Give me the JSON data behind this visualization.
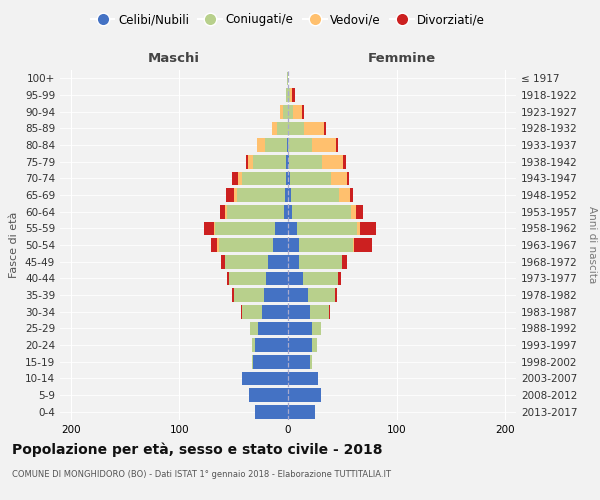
{
  "age_groups": [
    "0-4",
    "5-9",
    "10-14",
    "15-19",
    "20-24",
    "25-29",
    "30-34",
    "35-39",
    "40-44",
    "45-49",
    "50-54",
    "55-59",
    "60-64",
    "65-69",
    "70-74",
    "75-79",
    "80-84",
    "85-89",
    "90-94",
    "95-99",
    "100+"
  ],
  "birth_years": [
    "2013-2017",
    "2008-2012",
    "2003-2007",
    "1998-2002",
    "1993-1997",
    "1988-1992",
    "1983-1987",
    "1978-1982",
    "1973-1977",
    "1968-1972",
    "1963-1967",
    "1958-1962",
    "1953-1957",
    "1948-1952",
    "1943-1947",
    "1938-1942",
    "1933-1937",
    "1928-1932",
    "1923-1927",
    "1918-1922",
    "≤ 1917"
  ],
  "male_celibi": [
    30,
    36,
    42,
    32,
    30,
    28,
    24,
    22,
    20,
    18,
    14,
    12,
    4,
    3,
    2,
    2,
    1,
    0,
    0,
    0,
    0
  ],
  "male_coniugati": [
    0,
    0,
    0,
    1,
    3,
    7,
    18,
    28,
    34,
    40,
    50,
    55,
    52,
    44,
    40,
    30,
    20,
    10,
    5,
    2,
    1
  ],
  "male_vedovi": [
    0,
    0,
    0,
    0,
    0,
    0,
    0,
    0,
    0,
    0,
    1,
    1,
    2,
    3,
    4,
    5,
    8,
    5,
    2,
    0,
    0
  ],
  "male_divorziati": [
    0,
    0,
    0,
    0,
    0,
    0,
    1,
    2,
    2,
    4,
    6,
    9,
    5,
    7,
    6,
    2,
    0,
    0,
    0,
    0,
    0
  ],
  "female_nubili": [
    25,
    30,
    28,
    20,
    22,
    22,
    20,
    18,
    14,
    10,
    10,
    8,
    4,
    3,
    2,
    1,
    0,
    0,
    0,
    0,
    0
  ],
  "female_coniugate": [
    0,
    0,
    0,
    2,
    5,
    8,
    18,
    25,
    32,
    40,
    50,
    56,
    54,
    44,
    38,
    30,
    22,
    15,
    5,
    2,
    0
  ],
  "female_vedove": [
    0,
    0,
    0,
    0,
    0,
    0,
    0,
    0,
    0,
    0,
    1,
    2,
    5,
    10,
    14,
    20,
    22,
    18,
    8,
    2,
    0
  ],
  "female_divorziate": [
    0,
    0,
    0,
    0,
    0,
    0,
    1,
    2,
    3,
    4,
    16,
    15,
    6,
    3,
    2,
    2,
    2,
    2,
    2,
    2,
    0
  ],
  "color_celibi": "#4472c4",
  "color_coniugati": "#b8d08c",
  "color_vedovi": "#ffc06e",
  "color_divorziati": "#cc2020",
  "title": "Popolazione per età, sesso e stato civile - 2018",
  "subtitle": "COMUNE DI MONGHIDORO (BO) - Dati ISTAT 1° gennaio 2018 - Elaborazione TUTTITALIA.IT",
  "label_maschi": "Maschi",
  "label_femmine": "Femmine",
  "label_fasce": "Fasce di età",
  "label_anni": "Anni di nascita",
  "legend_labels": [
    "Celibi/Nubili",
    "Coniugati/e",
    "Vedovi/e",
    "Divorziati/e"
  ],
  "xlim": 210
}
